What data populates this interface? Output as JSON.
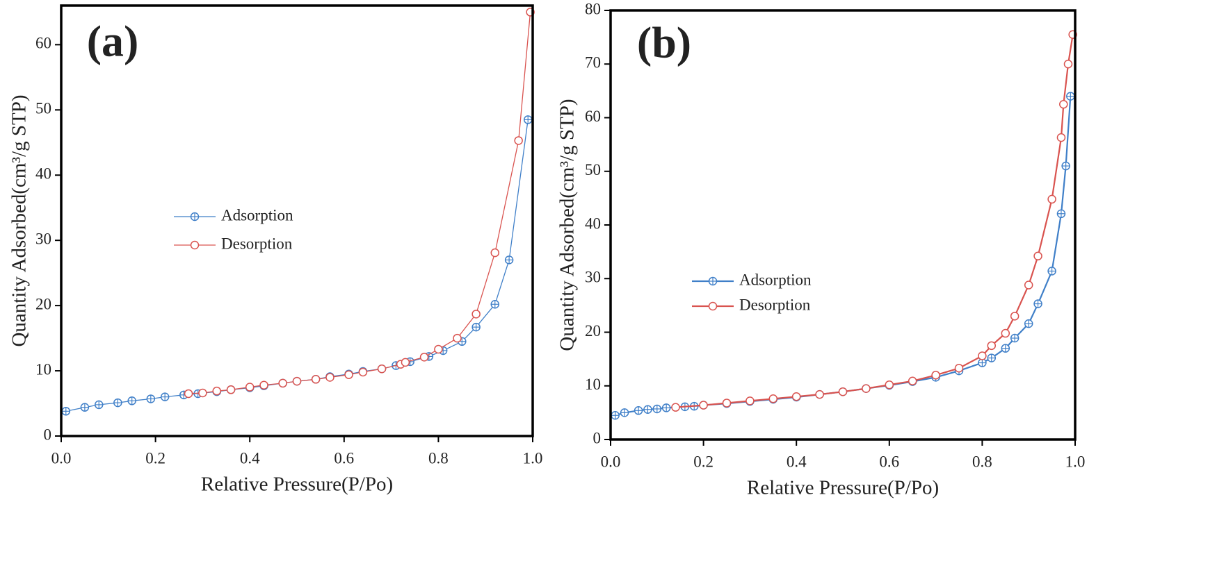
{
  "chart_data": [
    {
      "type": "line",
      "title": "(a)",
      "x_label": "Relative Pressure(P/Po)",
      "y_label": "Quantity Adsorbed(cm³/g STP)",
      "xlim": [
        0,
        1
      ],
      "ylim": [
        0,
        66
      ],
      "xticks": [
        {
          "value": 0,
          "label": "0.0"
        },
        0.2,
        0.4,
        0.6,
        0.8,
        {
          "value": 1,
          "label": "1.0"
        }
      ],
      "yticks": [
        0,
        10,
        20,
        30,
        40,
        50,
        60
      ],
      "line_width": 1.3,
      "series": [
        {
          "name": "Adsorption",
          "color": "#3f7fc8",
          "marker": "circle-plus",
          "x": [
            0.01,
            0.05,
            0.08,
            0.12,
            0.15,
            0.19,
            0.22,
            0.26,
            0.29,
            0.33,
            0.36,
            0.4,
            0.43,
            0.47,
            0.5,
            0.54,
            0.57,
            0.61,
            0.64,
            0.68,
            0.71,
            0.74,
            0.78,
            0.81,
            0.85,
            0.88,
            0.92,
            0.95,
            0.99
          ],
          "values": [
            3.8,
            4.4,
            4.8,
            5.1,
            5.4,
            5.7,
            6.0,
            6.3,
            6.5,
            6.8,
            7.1,
            7.4,
            7.7,
            8.1,
            8.4,
            8.7,
            9.1,
            9.5,
            9.9,
            10.3,
            10.8,
            11.4,
            12.2,
            13.1,
            14.5,
            16.7,
            20.2,
            27.0,
            48.5
          ]
        },
        {
          "name": "Desorption",
          "color": "#d9534f",
          "marker": "circle",
          "x": [
            0.27,
            0.3,
            0.33,
            0.36,
            0.4,
            0.43,
            0.47,
            0.5,
            0.54,
            0.57,
            0.61,
            0.64,
            0.68,
            0.72,
            0.73,
            0.77,
            0.8,
            0.84,
            0.88,
            0.92,
            0.97,
            0.995
          ],
          "values": [
            6.5,
            6.6,
            6.9,
            7.1,
            7.5,
            7.8,
            8.1,
            8.4,
            8.7,
            9.0,
            9.4,
            9.8,
            10.3,
            11.0,
            11.3,
            12.1,
            13.3,
            15.0,
            18.7,
            28.1,
            45.3,
            65.0
          ]
        }
      ]
    },
    {
      "type": "line",
      "title": "(b)",
      "x_label": "Relative Pressure(P/Po)",
      "y_label": "Quantity Adsorbed(cm³/g STP)",
      "xlim": [
        0,
        1
      ],
      "ylim": [
        0,
        80
      ],
      "xticks": [
        {
          "value": 0,
          "label": "0.0"
        },
        0.2,
        0.4,
        0.6,
        0.8,
        {
          "value": 1,
          "label": "1.0"
        }
      ],
      "yticks": [
        0,
        10,
        20,
        30,
        40,
        50,
        60,
        70,
        80
      ],
      "line_width": 2.2,
      "series": [
        {
          "name": "Adsorption",
          "color": "#3f7fc8",
          "marker": "circle-plus",
          "x": [
            0.01,
            0.03,
            0.06,
            0.08,
            0.1,
            0.12,
            0.16,
            0.18,
            0.2,
            0.25,
            0.3,
            0.35,
            0.4,
            0.45,
            0.5,
            0.55,
            0.6,
            0.65,
            0.7,
            0.75,
            0.8,
            0.82,
            0.85,
            0.87,
            0.9,
            0.92,
            0.95,
            0.97,
            0.98,
            0.99
          ],
          "values": [
            4.5,
            5.0,
            5.4,
            5.6,
            5.7,
            5.9,
            6.1,
            6.2,
            6.4,
            6.7,
            7.1,
            7.5,
            7.9,
            8.4,
            8.9,
            9.5,
            10.1,
            10.8,
            11.6,
            12.8,
            14.3,
            15.2,
            17.0,
            18.9,
            21.6,
            25.3,
            31.4,
            42.1,
            51.0,
            64.0
          ]
        },
        {
          "name": "Desorption",
          "color": "#d9534f",
          "marker": "circle",
          "x": [
            0.14,
            0.2,
            0.25,
            0.3,
            0.35,
            0.4,
            0.45,
            0.5,
            0.55,
            0.6,
            0.65,
            0.7,
            0.75,
            0.8,
            0.82,
            0.85,
            0.87,
            0.9,
            0.92,
            0.95,
            0.97,
            0.975,
            0.985,
            0.995
          ],
          "values": [
            6.0,
            6.4,
            6.8,
            7.2,
            7.6,
            8.0,
            8.4,
            8.9,
            9.5,
            10.2,
            10.9,
            12.0,
            13.3,
            15.6,
            17.5,
            19.8,
            23.0,
            28.8,
            34.2,
            44.8,
            56.3,
            62.5,
            70.0,
            75.5
          ]
        }
      ]
    }
  ]
}
